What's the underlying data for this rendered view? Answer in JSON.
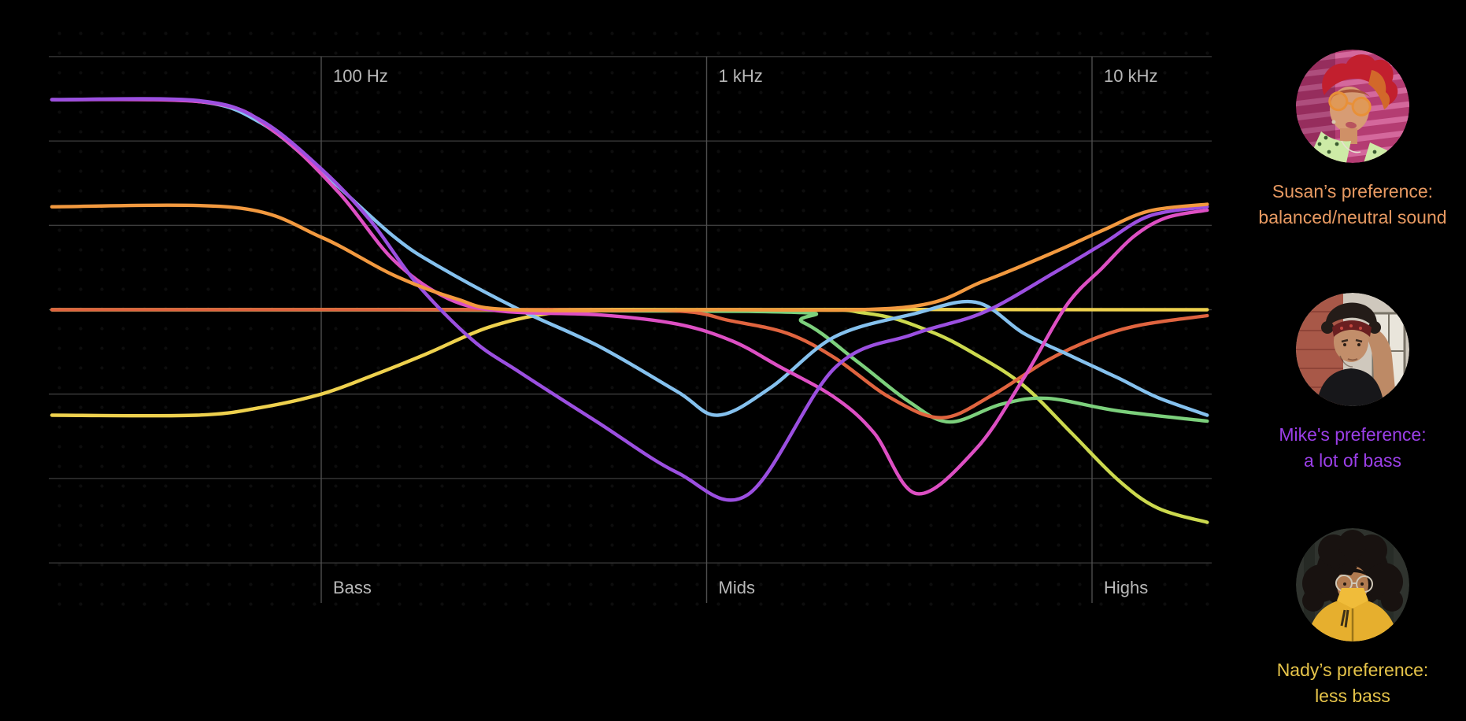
{
  "people": [
    {
      "id": "susan",
      "caption_line1": "Susan’s preference:",
      "caption_line2": "balanced/neutral sound",
      "text_color": "#e89a62",
      "avatar_alt": "person with spiky red hair and orange glasses in front of a pink corrugated wall"
    },
    {
      "id": "mike",
      "caption_line1": "Mike's preference:",
      "caption_line2": "a lot of bass",
      "text_color": "#9b3fe8",
      "avatar_alt": "man with dark hair and red bandana in front of a brick and white wall"
    },
    {
      "id": "nady",
      "caption_line1": "Nady’s preference:",
      "caption_line2": "less bass",
      "text_color": "#e6c44a",
      "avatar_alt": "woman with dark curly hair, thin glasses and a yellow jacket"
    }
  ],
  "chart_data": {
    "type": "line",
    "x_axis": {
      "scale": "log",
      "unit": "Hz",
      "range": [
        20,
        20000
      ]
    },
    "y_axis": {
      "unit": "relative level (1 grid step, 0 = neutral)",
      "range": [
        -3,
        3
      ],
      "gridlines": 7
    },
    "legend_position": "right column (people captions)",
    "freq_ticks": [
      {
        "label": "100 Hz",
        "hz": 100
      },
      {
        "label": "1 kHz",
        "hz": 1000
      },
      {
        "label": "10 kHz",
        "hz": 10000
      }
    ],
    "band_ticks": [
      {
        "label": "Bass",
        "hz": 100
      },
      {
        "label": "Mids",
        "hz": 1000
      },
      {
        "label": "Highs",
        "hz": 10000
      }
    ],
    "grid_color_h": "#3d3d3d",
    "grid_color_v": "#4e4e4e",
    "series": [
      {
        "id": "lime-downtilt",
        "color": "#ccd94e",
        "points": [
          [
            20,
            0
          ],
          [
            1280,
            0
          ],
          [
            2580,
            -0.04
          ],
          [
            3770,
            -0.25
          ],
          [
            4990,
            -0.53
          ],
          [
            6650,
            -0.9
          ],
          [
            8840,
            -1.46
          ],
          [
            11700,
            -2.02
          ],
          [
            14800,
            -2.35
          ],
          [
            19900,
            -2.52
          ]
        ]
      },
      {
        "id": "green-presence-dip",
        "color": "#7cd07c",
        "points": [
          [
            20,
            0
          ],
          [
            1280,
            -0.02
          ],
          [
            1780,
            -0.15
          ],
          [
            2470,
            -0.62
          ],
          [
            3350,
            -1.09
          ],
          [
            4270,
            -1.33
          ],
          [
            5810,
            -1.12
          ],
          [
            7660,
            -1.05
          ],
          [
            11700,
            -1.2
          ],
          [
            19900,
            -1.32
          ]
        ]
      },
      {
        "id": "salmon-mid-dip",
        "color": "#e0643f",
        "points": [
          [
            20,
            0
          ],
          [
            247,
            0
          ],
          [
            800,
            -0.01
          ],
          [
            1150,
            -0.13
          ],
          [
            1620,
            -0.28
          ],
          [
            2150,
            -0.57
          ],
          [
            2990,
            -1.04
          ],
          [
            4080,
            -1.28
          ],
          [
            5520,
            -1.01
          ],
          [
            7660,
            -0.6
          ],
          [
            10160,
            -0.34
          ],
          [
            13400,
            -0.18
          ],
          [
            19900,
            -0.07
          ]
        ]
      },
      {
        "id": "nady-yellow",
        "color": "#eed14e",
        "points": [
          [
            20,
            -1.25
          ],
          [
            47.5,
            -1.25
          ],
          [
            69.4,
            -1.16
          ],
          [
            100,
            -1.0
          ],
          [
            134,
            -0.79
          ],
          [
            186,
            -0.53
          ],
          [
            271,
            -0.21
          ],
          [
            394,
            -0.04
          ],
          [
            600,
            0
          ],
          [
            19900,
            0
          ]
        ]
      },
      {
        "id": "blue-vshape",
        "color": "#85c1ee",
        "points": [
          [
            20,
            2.49
          ],
          [
            47.5,
            2.47
          ],
          [
            69.4,
            2.22
          ],
          [
            100,
            1.64
          ],
          [
            154,
            0.87
          ],
          [
            204,
            0.5
          ],
          [
            327,
            0
          ],
          [
            524,
            -0.43
          ],
          [
            839,
            -0.97
          ],
          [
            1070,
            -1.25
          ],
          [
            1470,
            -0.92
          ],
          [
            2150,
            -0.32
          ],
          [
            3440,
            -0.05
          ],
          [
            4990,
            0.09
          ],
          [
            6650,
            -0.28
          ],
          [
            8840,
            -0.55
          ],
          [
            11700,
            -0.81
          ],
          [
            14800,
            -1.04
          ],
          [
            19900,
            -1.25
          ]
        ]
      },
      {
        "id": "pink-scoop",
        "color": "#dd4fc3",
        "points": [
          [
            20,
            2.49
          ],
          [
            52.2,
            2.45
          ],
          [
            76.2,
            2.1
          ],
          [
            111,
            1.39
          ],
          [
            154,
            0.59
          ],
          [
            214,
            0.13
          ],
          [
            298,
            -0.02
          ],
          [
            524,
            -0.06
          ],
          [
            839,
            -0.17
          ],
          [
            1165,
            -0.37
          ],
          [
            1540,
            -0.67
          ],
          [
            2150,
            -1.04
          ],
          [
            2720,
            -1.46
          ],
          [
            3510,
            -2.18
          ],
          [
            5000,
            -1.65
          ],
          [
            6650,
            -0.81
          ],
          [
            8610,
            0.06
          ],
          [
            10650,
            0.5
          ],
          [
            12850,
            0.87
          ],
          [
            15560,
            1.09
          ],
          [
            19900,
            1.18
          ]
        ]
      },
      {
        "id": "mike-purple",
        "color": "#9b4fe0",
        "points": [
          [
            20,
            2.49
          ],
          [
            47.5,
            2.48
          ],
          [
            69.4,
            2.25
          ],
          [
            100,
            1.67
          ],
          [
            134,
            1.06
          ],
          [
            177,
            0.31
          ],
          [
            247,
            -0.36
          ],
          [
            327,
            -0.74
          ],
          [
            524,
            -1.34
          ],
          [
            839,
            -1.93
          ],
          [
            1280,
            -2.19
          ],
          [
            2150,
            -0.69
          ],
          [
            3440,
            -0.29
          ],
          [
            5240,
            -0.03
          ],
          [
            8050,
            0.45
          ],
          [
            10650,
            0.78
          ],
          [
            14060,
            1.11
          ],
          [
            19900,
            1.22
          ]
        ]
      },
      {
        "id": "susan-orange",
        "color": "#f2993f",
        "points": [
          [
            20,
            1.22
          ],
          [
            60.2,
            1.21
          ],
          [
            100,
            0.86
          ],
          [
            154,
            0.41
          ],
          [
            224,
            0.13
          ],
          [
            312,
            0
          ],
          [
            1010,
            0
          ],
          [
            3280,
            0.03
          ],
          [
            5240,
            0.34
          ],
          [
            8050,
            0.69
          ],
          [
            10650,
            0.94
          ],
          [
            14060,
            1.17
          ],
          [
            19900,
            1.25
          ]
        ]
      }
    ]
  }
}
